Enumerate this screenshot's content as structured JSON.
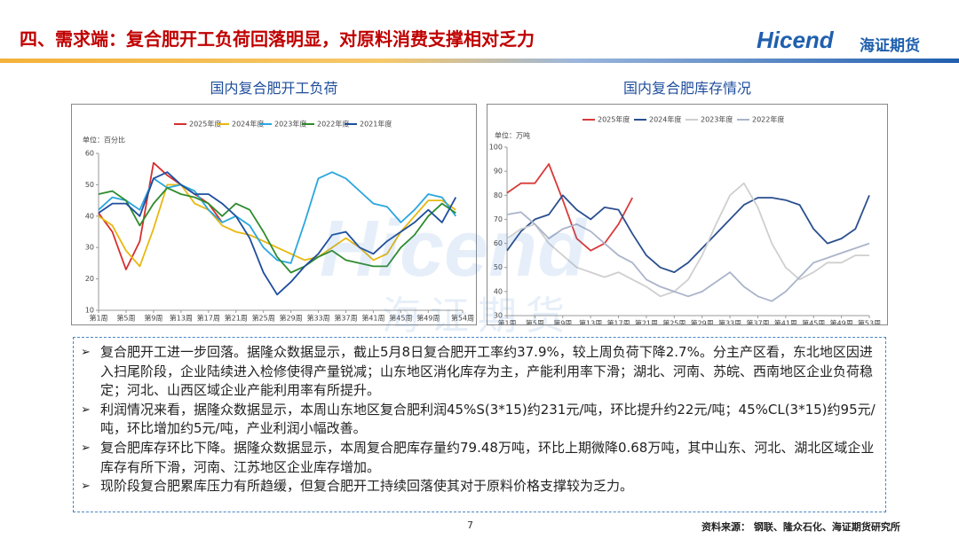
{
  "header": {
    "title": "四、需求端：复合肥开工负荷回落明显，对原料消费支撑相对乏力",
    "logo": "Hicend",
    "logo_cn": "海证期货"
  },
  "chart_data": [
    {
      "type": "line",
      "title": "国内复合肥开工负荷",
      "unit": "单位：百分比",
      "x": [
        1,
        3,
        5,
        7,
        9,
        11,
        13,
        15,
        17,
        19,
        21,
        23,
        25,
        27,
        29,
        31,
        33,
        35,
        37,
        39,
        41,
        43,
        45,
        47,
        49,
        51,
        53
      ],
      "xlim": [
        1,
        54
      ],
      "xticks": [
        {
          "value": 1,
          "label": "第1周"
        },
        {
          "value": 5,
          "label": "第5周"
        },
        {
          "value": 9,
          "label": "第9周"
        },
        {
          "value": 13,
          "label": "第13周"
        },
        {
          "value": 17,
          "label": "第17周"
        },
        {
          "value": 21,
          "label": "第21周"
        },
        {
          "value": 25,
          "label": "第25周"
        },
        {
          "value": 29,
          "label": "第29周"
        },
        {
          "value": 33,
          "label": "第33周"
        },
        {
          "value": 37,
          "label": "第37周"
        },
        {
          "value": 41,
          "label": "第41周"
        },
        {
          "value": 45,
          "label": "第45周"
        },
        {
          "value": 49,
          "label": "第49周"
        },
        {
          "value": 54,
          "label": "第54周"
        }
      ],
      "ylim": [
        10,
        60
      ],
      "yticks": [
        10,
        20,
        30,
        40,
        50,
        60
      ],
      "series": [
        {
          "name": "2025年度",
          "color": "#d62e2e",
          "values": [
            41,
            35,
            23,
            32,
            57,
            53,
            50,
            47,
            44,
            38,
            null,
            null,
            null,
            null,
            null,
            null,
            null,
            null,
            null,
            null,
            null,
            null,
            null,
            null,
            null,
            null,
            null
          ]
        },
        {
          "name": "2024年度",
          "color": "#e8b810",
          "values": [
            40,
            37,
            29,
            24,
            36,
            50,
            50,
            44,
            42,
            37,
            35,
            34,
            32,
            30,
            28,
            26,
            27,
            30,
            33,
            30,
            26,
            28,
            35,
            40,
            45,
            45,
            42
          ]
        },
        {
          "name": "2023年度",
          "color": "#2aa6df",
          "values": [
            42,
            46,
            45,
            42,
            52,
            49,
            50,
            48,
            42,
            38,
            40,
            37,
            30,
            26,
            25,
            38,
            52,
            54,
            52,
            48,
            44,
            43,
            38,
            42,
            47,
            46,
            40
          ]
        },
        {
          "name": "2022年度",
          "color": "#2e8b2e",
          "values": [
            47,
            48,
            45,
            37,
            44,
            49,
            47,
            46,
            44,
            40,
            44,
            42,
            35,
            27,
            22,
            24,
            27,
            29,
            26,
            25,
            24,
            24,
            30,
            34,
            40,
            44,
            41
          ]
        },
        {
          "name": "2021年度",
          "color": "#1f4e9c",
          "values": [
            41,
            44,
            44,
            40,
            52,
            54,
            50,
            47,
            47,
            44,
            40,
            33,
            22,
            15,
            19,
            24,
            28,
            34,
            35,
            30,
            28,
            32,
            35,
            38,
            42,
            38,
            46
          ]
        }
      ]
    },
    {
      "type": "line",
      "title": "国内复合肥库存情况",
      "unit": "单位：万吨",
      "x": [
        1,
        3,
        5,
        7,
        9,
        11,
        13,
        15,
        17,
        19,
        21,
        23,
        25,
        27,
        29,
        31,
        33,
        35,
        37,
        39,
        41,
        43,
        45,
        47,
        49,
        51,
        53
      ],
      "xlim": [
        1,
        53
      ],
      "xticks": [
        {
          "value": 1,
          "label": "第1周"
        },
        {
          "value": 5,
          "label": "第5周"
        },
        {
          "value": 9,
          "label": "第9周"
        },
        {
          "value": 13,
          "label": "第13周"
        },
        {
          "value": 17,
          "label": "第17周"
        },
        {
          "value": 21,
          "label": "第21周"
        },
        {
          "value": 25,
          "label": "第25周"
        },
        {
          "value": 29,
          "label": "第29周"
        },
        {
          "value": 33,
          "label": "第33周"
        },
        {
          "value": 37,
          "label": "第37周"
        },
        {
          "value": 41,
          "label": "第41周"
        },
        {
          "value": 45,
          "label": "第45周"
        },
        {
          "value": 49,
          "label": "第49周"
        },
        {
          "value": 53,
          "label": "第53周"
        }
      ],
      "ylim": [
        30,
        100
      ],
      "yticks": [
        30,
        40,
        50,
        60,
        70,
        80,
        90,
        100
      ],
      "series": [
        {
          "name": "2025年度",
          "color": "#d93a3a",
          "values": [
            81,
            85,
            85,
            93,
            78,
            62,
            57,
            60,
            68,
            79,
            null,
            null,
            null,
            null,
            null,
            null,
            null,
            null,
            null,
            null,
            null,
            null,
            null,
            null,
            null,
            null,
            null
          ]
        },
        {
          "name": "2024年度",
          "color": "#2a4f8f",
          "values": [
            57,
            65,
            70,
            72,
            80,
            74,
            70,
            75,
            74,
            64,
            55,
            50,
            48,
            52,
            58,
            64,
            70,
            76,
            79,
            79,
            78,
            76,
            66,
            60,
            62,
            66,
            80
          ]
        },
        {
          "name": "2023年度",
          "color": "#cfcfcf",
          "values": [
            62,
            66,
            68,
            60,
            55,
            50,
            48,
            46,
            48,
            45,
            42,
            38,
            40,
            45,
            55,
            68,
            80,
            85,
            75,
            60,
            50,
            45,
            48,
            52,
            52,
            55,
            55
          ]
        },
        {
          "name": "2022年度",
          "color": "#aab4ca",
          "values": [
            72,
            73,
            68,
            62,
            66,
            68,
            65,
            60,
            55,
            52,
            45,
            42,
            40,
            38,
            40,
            44,
            48,
            42,
            38,
            36,
            40,
            46,
            52,
            54,
            56,
            58,
            60
          ]
        }
      ]
    }
  ],
  "bullets": [
    "复合肥开工进一步回落。据隆众数据显示，截止5月8日复合肥开工率约37.9%，较上周负荷下降2.7%。分主产区看，东北地区因进入扫尾阶段，企业陆续进入检修使得产量锐减；山东地区消化库存为主，产能利用率下滑；湖北、河南、苏皖、西南地区企业负荷稳定；河北、山西区域企业产能利用率有所提升。",
    "利润情况来看，据隆众数据显示，本周山东地区复合肥利润45%S(3*15)约231元/吨，环比提升约22元/吨；45%CL(3*15)约95元/吨，环比增加约5元/吨，产业利润小幅改善。",
    "复合肥库存环比下降。据隆众数据显示，本周复合肥库存量约79.48万吨，环比上期微降0.68万吨，其中山东、河北、湖北区域企业库存有所下滑，河南、江苏地区企业库存增加。",
    "现阶段复合肥累库压力有所趋缓，但复合肥开工持续回落使其对于原料价格支撑较为乏力。"
  ],
  "footer": {
    "page": "7",
    "source": "资料来源： 钢联、隆众石化、海证期货研究所"
  }
}
